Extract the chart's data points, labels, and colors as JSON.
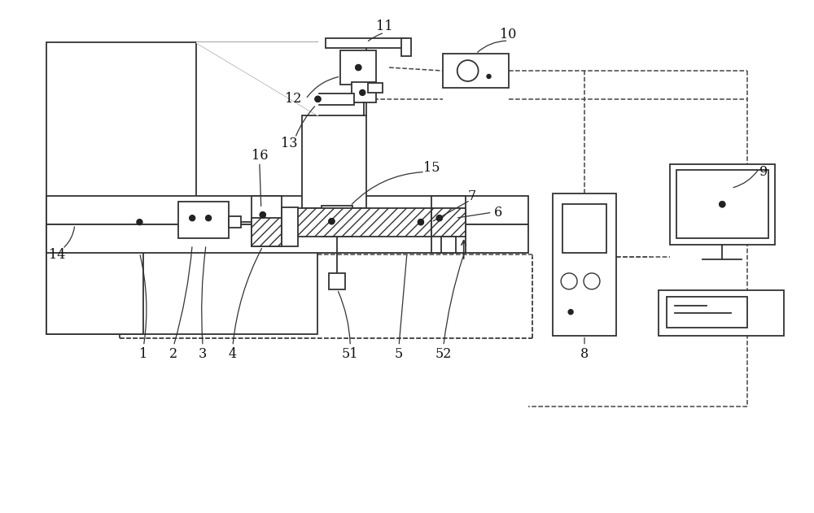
{
  "bg_color": "#ffffff",
  "lc": "#333333",
  "dc": "#444444",
  "figsize": [
    10.0,
    6.31
  ],
  "dpi": 100
}
